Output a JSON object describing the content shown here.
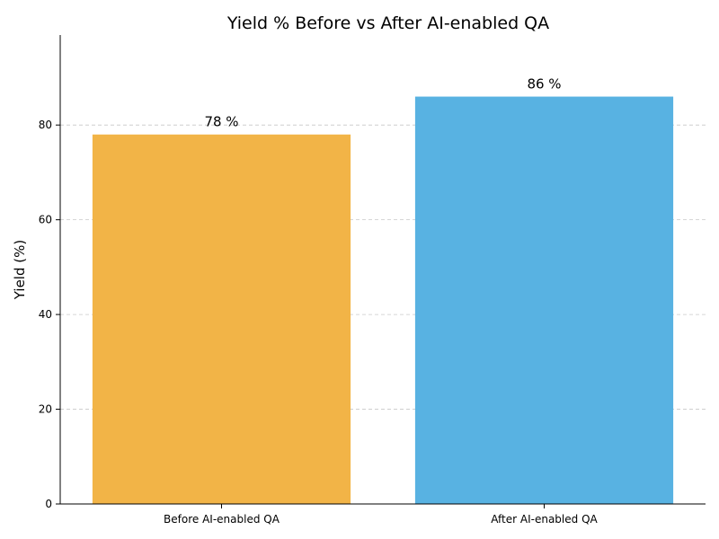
{
  "chart_data": {
    "type": "bar",
    "title": "Yield % Before vs After AI-enabled QA",
    "xlabel": "",
    "ylabel": "Yield (%)",
    "categories": [
      "Before AI-enabled QA",
      "After AI-enabled QA"
    ],
    "values": [
      78,
      86
    ],
    "data_labels": [
      "78 %",
      "86 %"
    ],
    "colors": [
      "#F2B447",
      "#58B2E2"
    ],
    "ylim": [
      0,
      99
    ],
    "yticks": [
      0,
      20,
      40,
      60,
      80
    ],
    "grid": "y-dashed",
    "legend": "none"
  }
}
